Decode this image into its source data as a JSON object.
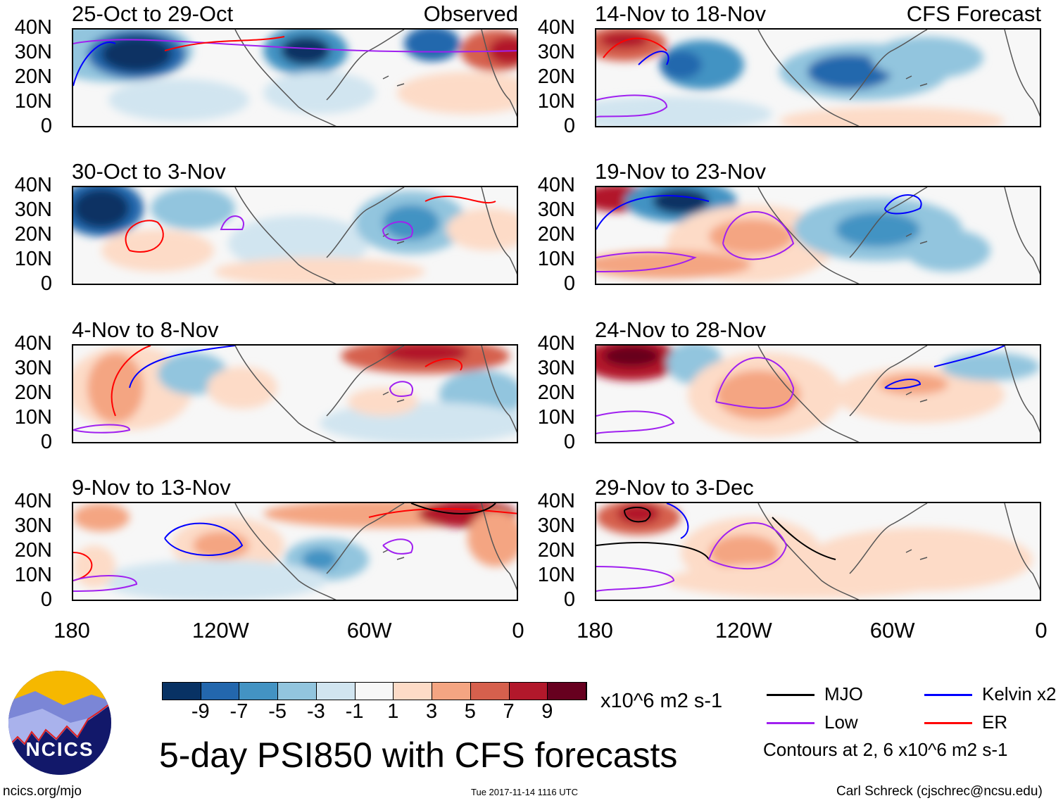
{
  "panels": [
    {
      "title": "25-Oct to 29-Oct",
      "tag": "Observed"
    },
    {
      "title": "14-Nov to 18-Nov",
      "tag": "CFS Forecast"
    },
    {
      "title": "30-Oct to 3-Nov",
      "tag": ""
    },
    {
      "title": "19-Nov to 23-Nov",
      "tag": ""
    },
    {
      "title": "4-Nov to 8-Nov",
      "tag": ""
    },
    {
      "title": "24-Nov to 28-Nov",
      "tag": ""
    },
    {
      "title": "9-Nov to 13-Nov",
      "tag": ""
    },
    {
      "title": "29-Nov to 3-Dec",
      "tag": ""
    }
  ],
  "lat_labels": [
    "40N",
    "30N",
    "20N",
    "10N",
    "0"
  ],
  "lon_labels": [
    "180",
    "120W",
    "60W",
    "0"
  ],
  "colorbar": {
    "colors": [
      "#083264",
      "#2367ad",
      "#4393c3",
      "#92c5de",
      "#d1e5f0",
      "#f7f7f7",
      "#fddbc7",
      "#f4a582",
      "#d6604d",
      "#b2182b",
      "#67001f"
    ],
    "labels": [
      "-9",
      "-7",
      "-5",
      "-3",
      "-1",
      "1",
      "3",
      "5",
      "7",
      "9"
    ],
    "units": "x10^6 m2 s-1"
  },
  "legend": {
    "items": [
      {
        "label": "MJO",
        "color": "#000000"
      },
      {
        "label": "Kelvin x2",
        "color": "#0000ff"
      },
      {
        "label": "Low",
        "color": "#a020f0"
      },
      {
        "label": "ER",
        "color": "#ff0000"
      }
    ],
    "note": "Contours at 2, 6 x10^6 m2 s-1"
  },
  "title": "5-day PSI850 with CFS forecasts",
  "logo_text": "NCICS",
  "footer": {
    "left": "ncics.org/mjo",
    "center": "Tue 2017-11-14 1116 UTC",
    "right": "Carl Schreck (cjschrec@ncsu.edu)"
  }
}
